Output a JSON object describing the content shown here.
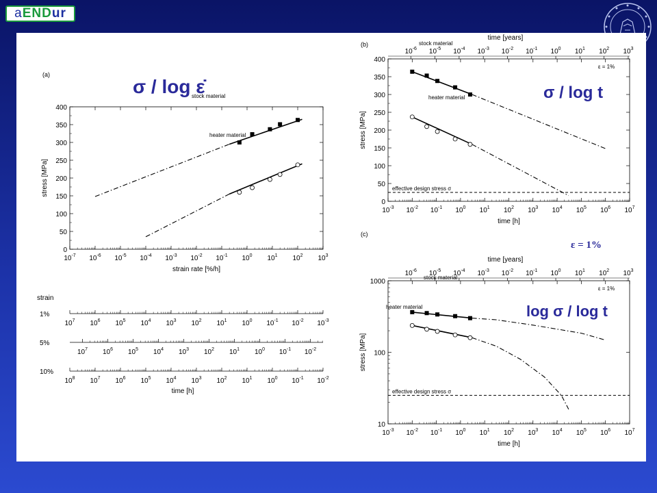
{
  "header": {
    "logo_parts": [
      "a",
      "END",
      "ur"
    ],
    "seal_icon": "university-seal-icon"
  },
  "colors": {
    "background_top": "#0a1466",
    "background_bottom": "#2b4ad0",
    "annotation": "#2a2a9a",
    "logo_green": "#1a9a3c",
    "logo_blue": "#1c2fa0"
  },
  "annotations": {
    "a": "σ / log ε̇",
    "b": "σ / log t",
    "c": "log σ / log t",
    "epsilon": "ε = 1%"
  },
  "strain_scales": {
    "heading": "strain",
    "xlabel": "time [h]",
    "rows": [
      {
        "label": "1%",
        "exponents": [
          7,
          6,
          5,
          4,
          3,
          2,
          1,
          0,
          -1,
          -2,
          -3
        ]
      },
      {
        "label": "5%",
        "exponents": [
          7,
          6,
          5,
          4,
          3,
          2,
          1,
          0,
          -1,
          -2
        ]
      },
      {
        "label": "10%",
        "exponents": [
          8,
          7,
          6,
          5,
          4,
          3,
          2,
          1,
          0,
          -1,
          -2
        ]
      }
    ]
  },
  "chart_data": [
    {
      "id": "a",
      "panel_label": "(a)",
      "type": "scatter",
      "xlabel": "strain rate [%/h]",
      "ylabel": "stress [MPa]",
      "xscale": "log",
      "xlim_exp": [
        -7,
        3
      ],
      "ylim": [
        0,
        400
      ],
      "yticks": [
        0,
        50,
        100,
        150,
        200,
        250,
        300,
        350,
        400
      ],
      "series": [
        {
          "name": "stock material",
          "marker": "filled-square",
          "points": [
            [
              0.5,
              300
            ],
            [
              1.6,
              323
            ],
            [
              8,
              337
            ],
            [
              20,
              351
            ],
            [
              100,
              363
            ]
          ],
          "fit": [
            [
              0.2,
              295
            ],
            [
              150,
              365
            ]
          ],
          "extrapolation": [
            [
              1e-06,
              148
            ],
            [
              0.2,
              295
            ]
          ]
        },
        {
          "name": "heater material",
          "marker": "open-circle",
          "points": [
            [
              0.5,
              160
            ],
            [
              1.6,
              173
            ],
            [
              8,
              196
            ],
            [
              20,
              210
            ],
            [
              100,
              237
            ]
          ],
          "fit": [
            [
              0.2,
              155
            ],
            [
              150,
              240
            ]
          ],
          "extrapolation": [
            [
              0.0001,
              35
            ],
            [
              0.2,
              155
            ]
          ]
        }
      ]
    },
    {
      "id": "b",
      "panel_label": "(b)",
      "type": "scatter",
      "xlabel": "time [h]",
      "ylabel": "stress [MPa]",
      "xlabel_top": "time [years]",
      "xscale": "log",
      "xlim_exp": [
        -3,
        7
      ],
      "top_xlim_exp": [
        -6,
        3
      ],
      "ylim": [
        0,
        400
      ],
      "yticks": [
        0,
        50,
        100,
        150,
        200,
        250,
        300,
        350,
        400
      ],
      "strain_note": "ε = 1%",
      "design_stress": {
        "label": "effective design stress σ",
        "value": 25
      },
      "series": [
        {
          "name": "stock material",
          "marker": "filled-square",
          "points": [
            [
              0.01,
              364
            ],
            [
              0.04,
              353
            ],
            [
              0.11,
              338
            ],
            [
              0.6,
              320
            ],
            [
              2.5,
              300
            ]
          ],
          "fit": [
            [
              0.01,
              364
            ],
            [
              3,
              300
            ]
          ],
          "extrapolation": [
            [
              3,
              300
            ],
            [
              1000000.0,
              148
            ]
          ]
        },
        {
          "name": "heater material",
          "marker": "open-circle",
          "points": [
            [
              0.01,
              237
            ],
            [
              0.04,
              210
            ],
            [
              0.11,
              196
            ],
            [
              0.6,
              175
            ],
            [
              2.5,
              160
            ]
          ],
          "fit": [
            [
              0.01,
              237
            ],
            [
              3,
              160
            ]
          ],
          "extrapolation": [
            [
              3,
              160
            ],
            [
              30000.0,
              16
            ]
          ]
        }
      ]
    },
    {
      "id": "c",
      "panel_label": "(c)",
      "type": "scatter",
      "xlabel": "time [h]",
      "ylabel": "stress [MPa]",
      "xlabel_top": "time [years]",
      "xscale": "log",
      "yscale": "log",
      "xlim_exp": [
        -3,
        7
      ],
      "top_xlim_exp": [
        -6,
        3
      ],
      "ylim": [
        10,
        1000
      ],
      "yticks": [
        10,
        100,
        1000
      ],
      "strain_note": "ε = 1%",
      "design_stress": {
        "label": "effective design stress σ",
        "value": 25
      },
      "series": [
        {
          "name": "stock material",
          "marker": "filled-square",
          "points": [
            [
              0.01,
              364
            ],
            [
              0.04,
              353
            ],
            [
              0.11,
              338
            ],
            [
              0.6,
              320
            ],
            [
              2.5,
              300
            ]
          ],
          "fit": [
            [
              0.01,
              364
            ],
            [
              3,
              300
            ]
          ],
          "extrapolation": [
            [
              3,
              300
            ],
            [
              30,
              285
            ],
            [
              1000,
              240
            ],
            [
              100000.0,
              185
            ],
            [
              1000000.0,
              148
            ]
          ]
        },
        {
          "name": "heater material",
          "marker": "open-circle",
          "points": [
            [
              0.01,
              237
            ],
            [
              0.04,
              210
            ],
            [
              0.11,
              196
            ],
            [
              0.6,
              175
            ],
            [
              2.5,
              160
            ]
          ],
          "fit": [
            [
              0.01,
              237
            ],
            [
              3,
              160
            ]
          ],
          "extrapolation": [
            [
              3,
              160
            ],
            [
              30,
              122
            ],
            [
              300,
              80
            ],
            [
              3000,
              45
            ],
            [
              15000.0,
              25
            ],
            [
              30000.0,
              16
            ]
          ]
        }
      ]
    }
  ]
}
